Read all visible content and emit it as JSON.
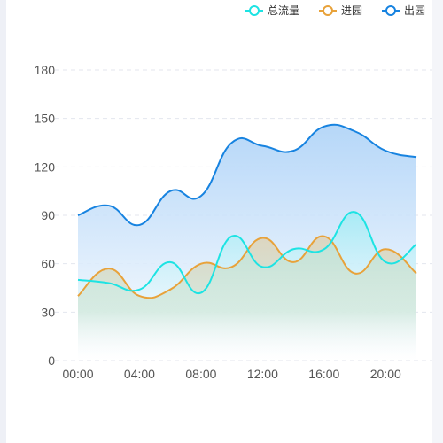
{
  "chart_data": {
    "type": "area",
    "x": [
      "00:00",
      "02:00",
      "04:00",
      "06:00",
      "08:00",
      "10:00",
      "12:00",
      "14:00",
      "16:00",
      "18:00",
      "20:00",
      "22:00"
    ],
    "x_tick_labels": [
      "00:00",
      "04:00",
      "08:00",
      "12:00",
      "16:00",
      "20:00"
    ],
    "y_tick_labels": [
      "0",
      "30",
      "60",
      "90",
      "120",
      "150",
      "180"
    ],
    "ylim": [
      0,
      180
    ],
    "grid": true,
    "legend_position": "top-right",
    "series": [
      {
        "name": "总流量",
        "color": "#1de3e3",
        "values": [
          50,
          48,
          44,
          61,
          42,
          77,
          58,
          69,
          69,
          92,
          61,
          72
        ]
      },
      {
        "name": "进园",
        "color": "#e8a23a",
        "values": [
          40,
          57,
          40,
          44,
          60,
          58,
          76,
          61,
          77,
          54,
          69,
          54
        ]
      },
      {
        "name": "出园",
        "color": "#1783e0",
        "values": [
          90,
          96,
          84,
          105,
          102,
          135,
          133,
          130,
          145,
          142,
          130,
          126
        ]
      }
    ]
  }
}
